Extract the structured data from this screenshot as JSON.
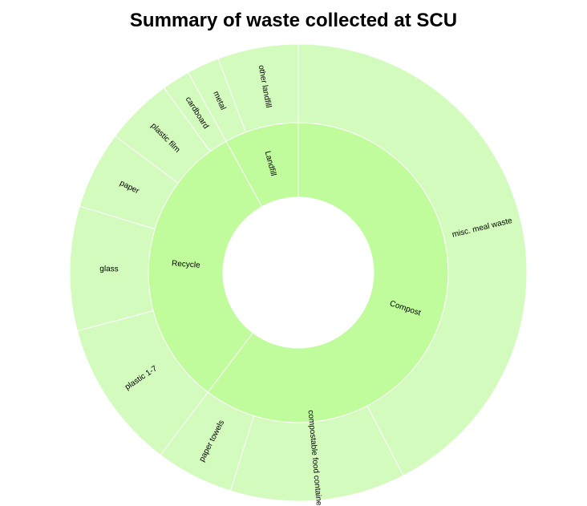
{
  "chart_data": {
    "type": "sunburst",
    "title": "Summary of waste collected at SCU",
    "inner_color": "#c0fb9c",
    "outer_color": "#d4fbbe",
    "categories": [
      {
        "name": "Compost",
        "value": 60.3,
        "children": [
          {
            "name": "misc. meal waste",
            "value": 42.4
          },
          {
            "name": "compostable food containers",
            "value": 12.4
          },
          {
            "name": "paper towels",
            "value": 5.5
          }
        ]
      },
      {
        "name": "Recycle",
        "value": 31.7,
        "children": [
          {
            "name": "plastic 1-7",
            "value": 10.6
          },
          {
            "name": "glass",
            "value": 8.8
          },
          {
            "name": "paper",
            "value": 5.5
          },
          {
            "name": "plastic film",
            "value": 4.8
          },
          {
            "name": "cardboard",
            "value": 2.0
          }
        ]
      },
      {
        "name": "Landfill",
        "value": 8.0,
        "children": [
          {
            "name": "metal",
            "value": 2.3
          },
          {
            "name": "other landfill",
            "value": 5.7
          }
        ]
      }
    ]
  }
}
